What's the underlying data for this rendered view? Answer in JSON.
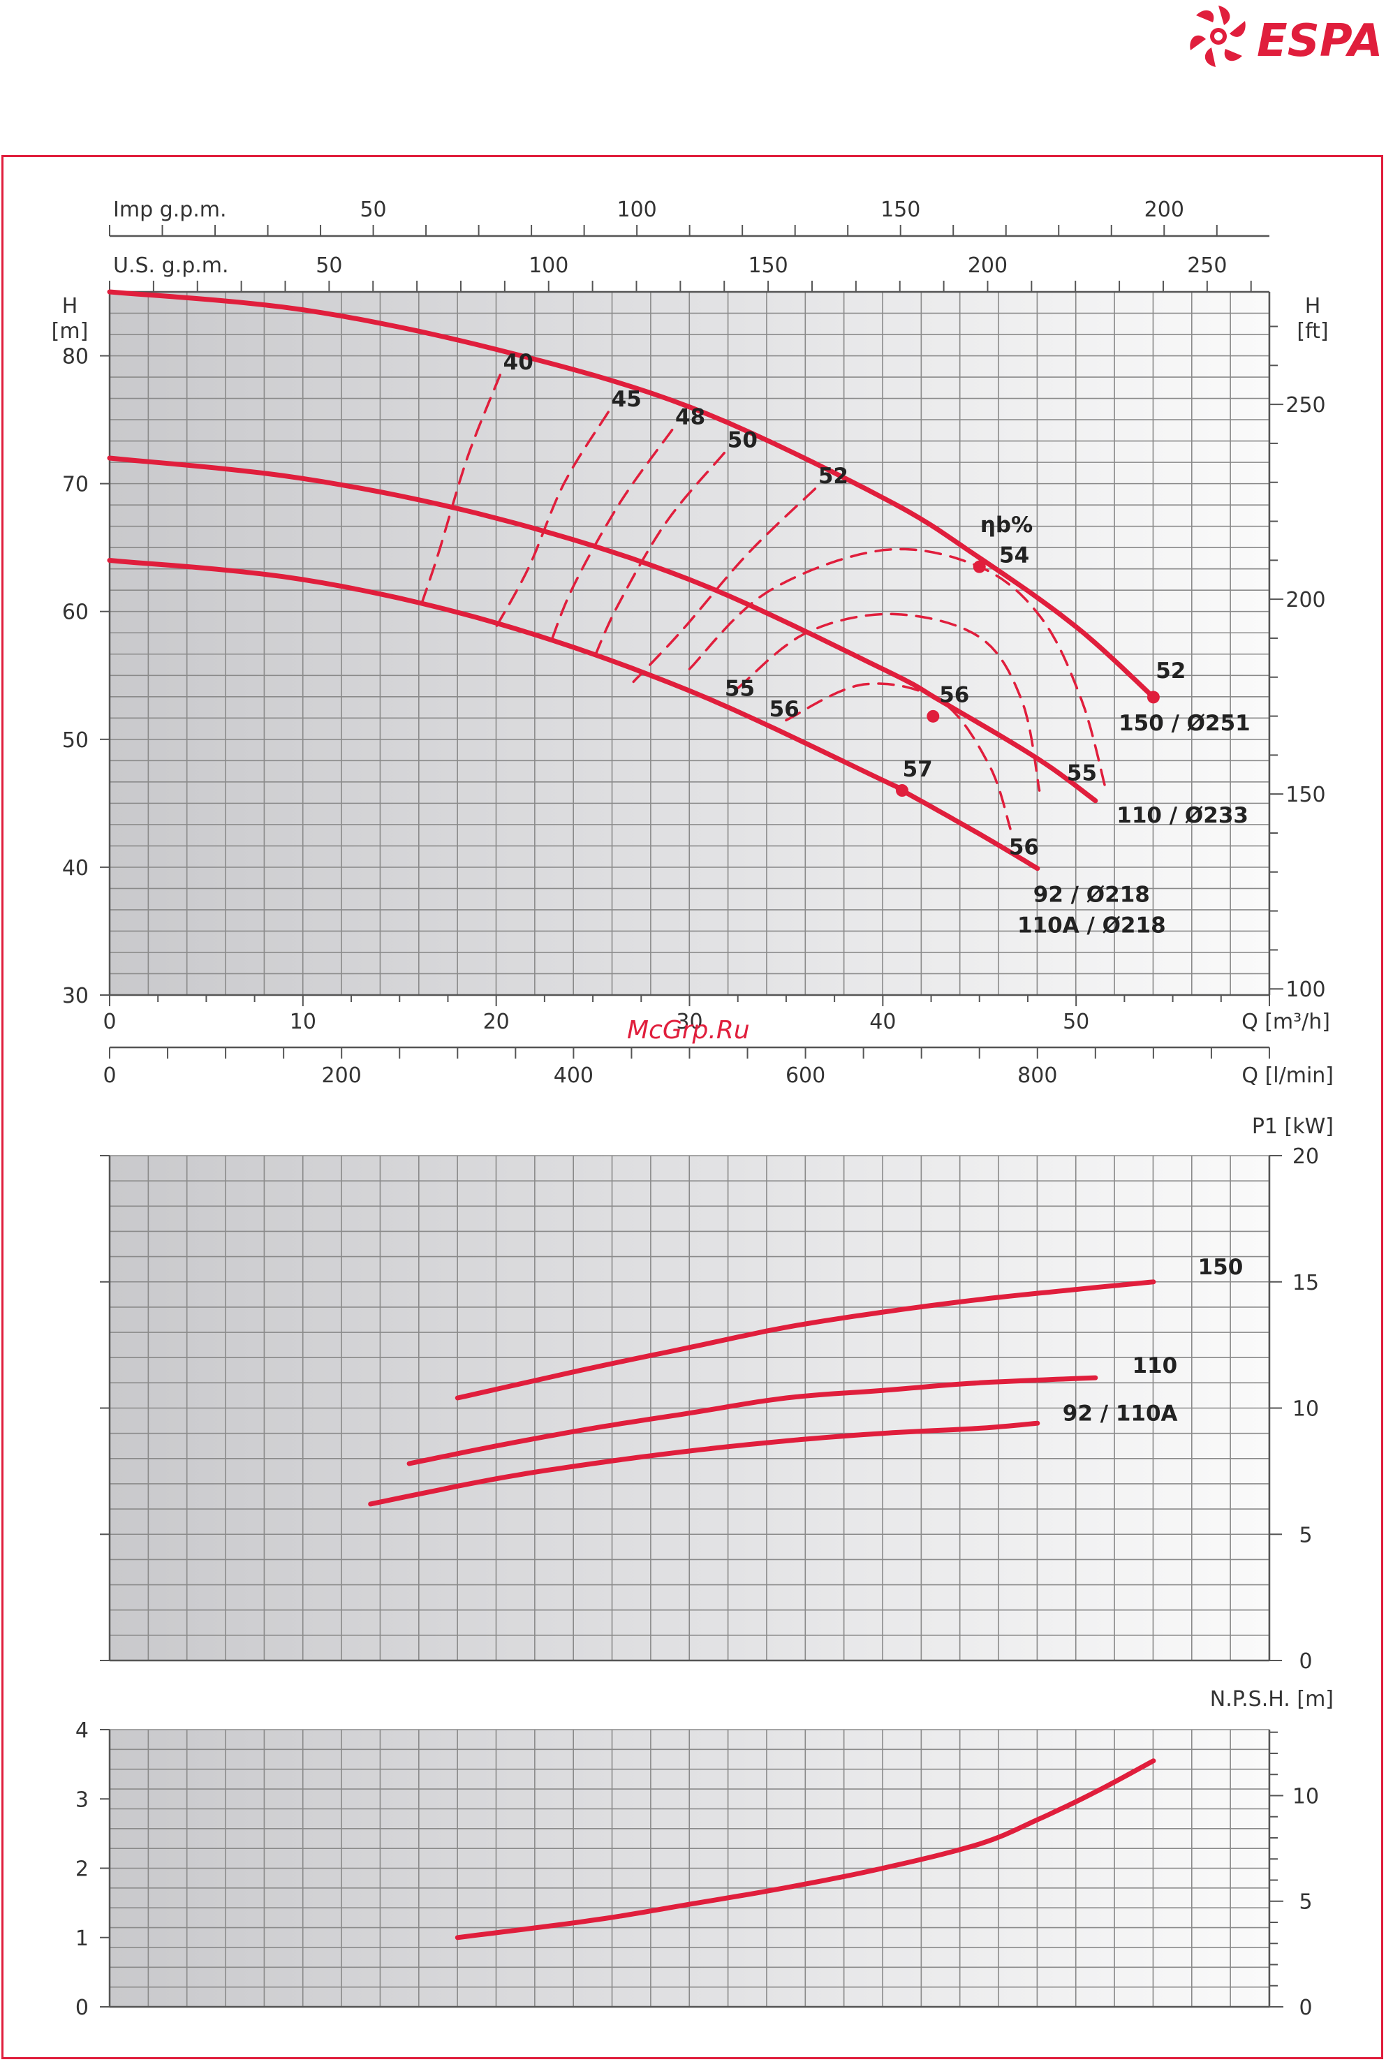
{
  "brand": {
    "name": "ESPA",
    "color": "#e01e3c"
  },
  "watermark": "McGrp.Ru",
  "colors": {
    "curve": "#e01e3c",
    "grid": "#8a8a8a",
    "axis": "#555555"
  },
  "chart_data": [
    {
      "id": "head",
      "type": "line",
      "grid": true,
      "xlim": [
        0,
        60
      ],
      "ylim": [
        30,
        85
      ],
      "y_ticks": [
        30,
        40,
        50,
        60,
        70,
        80
      ],
      "x_ticks": [
        0,
        10,
        20,
        30,
        40,
        50
      ],
      "xlabel": "Q [m³/h]",
      "ylabel_left": "H\n[m]",
      "ylabel_right": "H\n[ft]",
      "right_ticks_ft": [
        100,
        150,
        200,
        250
      ],
      "top_axes": [
        {
          "label": "Imp g.p.m.",
          "ticks": [
            50,
            100,
            150,
            200
          ],
          "per_m3h": 3.666
        },
        {
          "label": "U.S. g.p.m.",
          "ticks": [
            50,
            100,
            150,
            200,
            250
          ],
          "per_m3h": 4.403
        }
      ],
      "bottom_axis2": {
        "label": "Q [l/min]",
        "ticks": [
          0,
          200,
          400,
          600,
          800
        ],
        "per_m3h": 16.667
      },
      "series": [
        {
          "name": "150 / Ø251",
          "x": [
            0,
            10,
            20,
            30,
            40,
            45,
            50,
            54
          ],
          "y": [
            85,
            83.6,
            80.5,
            76,
            68.9,
            64.2,
            58.8,
            53.3
          ]
        },
        {
          "name": "110 / Ø233",
          "x": [
            0,
            10,
            20,
            30,
            40,
            43,
            48,
            51
          ],
          "y": [
            72,
            70.4,
            67.3,
            62.5,
            55.5,
            53,
            48.5,
            45.2
          ]
        },
        {
          "name": "92 / Ø218\n110A / Ø218",
          "x": [
            0,
            10,
            20,
            30,
            40,
            41,
            45,
            48
          ],
          "y": [
            64,
            62.5,
            59.1,
            53.8,
            46.8,
            46,
            42.6,
            39.9
          ]
        }
      ],
      "efficiency_label": "ηb%",
      "efficiency_curves": [
        {
          "label": "40",
          "x": [
            20.2,
            18.5,
            17,
            16
          ],
          "y": [
            78.5,
            72,
            64.5,
            60
          ]
        },
        {
          "label": "45",
          "x": [
            25.8,
            23.5,
            21.7,
            20
          ],
          "y": [
            75.6,
            70,
            63.5,
            58.8
          ]
        },
        {
          "label": "48",
          "x": [
            29.1,
            26.4,
            24,
            22.8
          ],
          "y": [
            74.2,
            68.5,
            62,
            57.5
          ]
        },
        {
          "label": "50",
          "x": [
            31.8,
            28.8,
            26.3,
            25.1
          ],
          "y": [
            72.4,
            67,
            60.5,
            56.5
          ]
        },
        {
          "label": "52",
          "x": [
            36.5,
            33,
            29.6,
            27.1
          ],
          "y": [
            69.6,
            64.5,
            58.5,
            54.5
          ]
        },
        {
          "label": "54",
          "x": [
            30,
            34,
            40,
            45,
            48.2,
            50.3,
            51.5
          ],
          "y": [
            55.5,
            61.5,
            64.8,
            63.5,
            59.5,
            53,
            46.3
          ]
        },
        {
          "label": "55",
          "x": [
            32.5,
            36,
            40.5,
            45,
            47.2,
            48.1
          ],
          "y": [
            54,
            58.3,
            59.8,
            58,
            53,
            46
          ]
        },
        {
          "label": "56",
          "x": [
            35,
            39,
            43,
            45.5,
            46.6
          ],
          "y": [
            51.5,
            54.3,
            53,
            48,
            43
          ]
        }
      ],
      "point_labels": [
        "57",
        "56",
        "52",
        "55",
        "56",
        "55",
        "56"
      ],
      "markers": [
        {
          "x": 45,
          "y": 63.5
        },
        {
          "x": 54,
          "y": 53.3
        },
        {
          "x": 42.6,
          "y": 51.8
        },
        {
          "x": 41,
          "y": 46
        }
      ]
    },
    {
      "id": "power",
      "type": "line",
      "grid": true,
      "xlim": [
        0,
        60
      ],
      "ylim": [
        0,
        20
      ],
      "y_ticks_right": [
        0,
        5,
        10,
        15,
        20
      ],
      "ylabel_right": "P1 [kW]",
      "series": [
        {
          "name": "150",
          "x": [
            18,
            25,
            30,
            35,
            40,
            45,
            50,
            54
          ],
          "y": [
            10.4,
            11.6,
            12.4,
            13.2,
            13.8,
            14.3,
            14.7,
            15.0
          ]
        },
        {
          "name": "110",
          "x": [
            15.5,
            20,
            25,
            30,
            35,
            40,
            45,
            51
          ],
          "y": [
            7.8,
            8.5,
            9.2,
            9.8,
            10.4,
            10.7,
            11.0,
            11.2
          ]
        },
        {
          "name": "92 / 110A",
          "x": [
            13.5,
            20,
            25,
            30,
            35,
            40,
            45,
            48
          ],
          "y": [
            6.2,
            7.2,
            7.8,
            8.3,
            8.7,
            9.0,
            9.2,
            9.4
          ]
        }
      ]
    },
    {
      "id": "npsh",
      "type": "line",
      "grid": true,
      "xlim": [
        0,
        60
      ],
      "ylim": [
        0,
        4
      ],
      "y_ticks_left": [
        0,
        1,
        2,
        3,
        4
      ],
      "y_ticks_right_ft": [
        0,
        5,
        10
      ],
      "ylabel_right": "N.P.S.H. [m]",
      "series": [
        {
          "name": "",
          "x": [
            18,
            25,
            30,
            35,
            40,
            45,
            48,
            51,
            54
          ],
          "y": [
            1.0,
            1.25,
            1.48,
            1.72,
            2.0,
            2.35,
            2.7,
            3.1,
            3.55
          ]
        }
      ]
    }
  ]
}
